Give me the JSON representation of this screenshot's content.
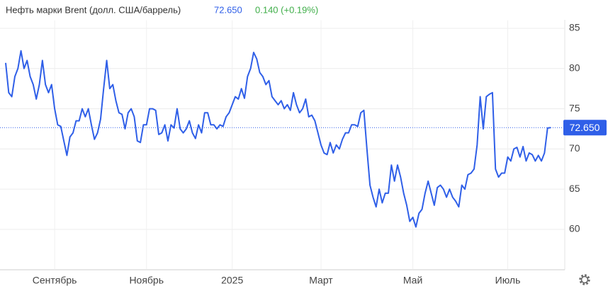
{
  "chart_data": {
    "type": "line",
    "title": "Нефть марки Brent (долл. США/баррель)",
    "price": "72.650",
    "change": "0.140 (+0.19%)",
    "last": {
      "value": 72.65,
      "label": "72.650"
    },
    "ylim": [
      55,
      86
    ],
    "yticks": [
      60,
      65,
      70,
      75,
      80,
      85
    ],
    "grid": true,
    "categories": [
      null,
      null,
      null,
      null,
      null,
      null,
      null,
      null,
      null,
      null,
      null,
      null,
      null,
      null,
      null,
      null,
      "Сентябрь",
      null,
      null,
      null,
      null,
      null,
      null,
      null,
      null,
      null,
      null,
      null,
      null,
      null,
      null,
      null,
      null,
      null,
      null,
      null,
      null,
      null,
      null,
      null,
      null,
      null,
      null,
      null,
      null,
      null,
      "Ноябрь",
      null,
      null,
      null,
      null,
      null,
      null,
      null,
      null,
      null,
      null,
      null,
      null,
      null,
      null,
      null,
      null,
      null,
      null,
      null,
      null,
      null,
      null,
      null,
      null,
      null,
      null,
      null,
      "2025",
      null,
      null,
      null,
      null,
      null,
      null,
      null,
      null,
      null,
      null,
      null,
      null,
      null,
      null,
      null,
      null,
      null,
      null,
      null,
      null,
      null,
      null,
      null,
      null,
      null,
      null,
      null,
      null,
      "Март",
      null,
      null,
      null,
      null,
      null,
      null,
      null,
      null,
      null,
      null,
      null,
      null,
      null,
      null,
      null,
      null,
      null,
      null,
      null,
      null,
      null,
      null,
      null,
      null,
      null,
      null,
      null,
      null,
      null,
      "Май",
      null,
      null,
      null,
      null,
      null,
      null,
      null,
      null,
      null,
      null,
      null,
      null,
      null,
      null,
      null,
      null,
      null,
      null,
      null,
      null,
      null,
      null,
      null,
      null,
      null,
      null,
      null,
      null,
      null,
      null,
      "Июль",
      null,
      null,
      null,
      null,
      null,
      null,
      null,
      null,
      null,
      null,
      null,
      null,
      null,
      null
    ],
    "series": [
      {
        "name": "Brent",
        "color": "#2f5fe8",
        "values": [
          80.7,
          77,
          76.5,
          79,
          80,
          82.2,
          80,
          81,
          79,
          78,
          76.2,
          78,
          81,
          78,
          77,
          78,
          75,
          73,
          72.8,
          71,
          69.2,
          71.5,
          72,
          73.5,
          73.5,
          75,
          74,
          75,
          73,
          71.2,
          72,
          73.7,
          77.5,
          81,
          77.5,
          78,
          76,
          74.5,
          74.3,
          72.5,
          74.5,
          75,
          74,
          71,
          70.8,
          73,
          73,
          75,
          75,
          74.8,
          71.8,
          72,
          73,
          71,
          73,
          72.6,
          75,
          72.5,
          72,
          72.5,
          73.5,
          72,
          71.3,
          73,
          72,
          74.5,
          74.5,
          73,
          73,
          72.5,
          73,
          72.8,
          74,
          74.5,
          75.5,
          76.5,
          76.2,
          77.5,
          76.3,
          79,
          80,
          82,
          81.2,
          79.5,
          79,
          78,
          78.5,
          76.5,
          76,
          75.5,
          76,
          75,
          75.5,
          74.8,
          77,
          75.5,
          74.5,
          75,
          76.2,
          74,
          74.2,
          73.5,
          72,
          70.5,
          69.5,
          69.3,
          70.8,
          69.5,
          70.5,
          70,
          71.2,
          72,
          72,
          73,
          73,
          72.8,
          74.5,
          74.8,
          70,
          65.5,
          64,
          62.8,
          65,
          63.3,
          64.5,
          64.5,
          68,
          66,
          68,
          66.5,
          64.5,
          63,
          61,
          61.5,
          60.3,
          62,
          62.5,
          64.5,
          66,
          64.5,
          63,
          65.2,
          65.5,
          65,
          64,
          65,
          64,
          63.5,
          62.8,
          65.5,
          65,
          66.8,
          67,
          67.5,
          70.5,
          76.5,
          72.5,
          76.5,
          76.8,
          77,
          67.5,
          66.5,
          67,
          67,
          69,
          68.5,
          70,
          70.2,
          69,
          70.3,
          68.5,
          69.5,
          69.3,
          68.5,
          69.2,
          68.5,
          69.5,
          72.6,
          72.65
        ]
      }
    ]
  }
}
